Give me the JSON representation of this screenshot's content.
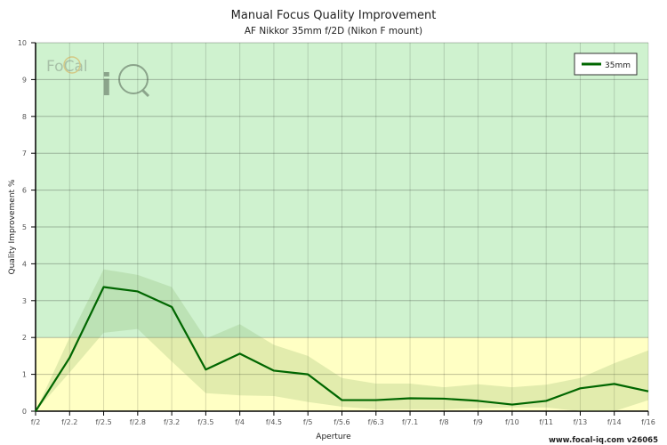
{
  "chart_data": {
    "type": "line",
    "title": "Manual Focus Quality Improvement",
    "subtitle": "AF Nikkor 35mm f/2D (Nikon F mount)",
    "xlabel": "Aperture",
    "ylabel": "Quality Improvement %",
    "ylim": [
      0,
      10
    ],
    "yticks": [
      0,
      1,
      2,
      3,
      4,
      5,
      6,
      7,
      8,
      9,
      10
    ],
    "grid": true,
    "legend_placement": "top-right",
    "categories": [
      "f/2",
      "f/2.2",
      "f/2.5",
      "f/2.8",
      "f/3.2",
      "f/3.5",
      "f/4",
      "f/4.5",
      "f/5",
      "f/5.6",
      "f/6.3",
      "f/7.1",
      "f/8",
      "f/9",
      "f/10",
      "f/11",
      "f/13",
      "f/14",
      "f/16"
    ],
    "series": [
      {
        "name": "35mm",
        "color": "#006600",
        "values": [
          0,
          1.45,
          3.37,
          3.25,
          2.83,
          1.13,
          1.56,
          1.1,
          1.0,
          0.3,
          0.3,
          0.35,
          0.34,
          0.28,
          0.18,
          0.28,
          0.62,
          0.74,
          0.54
        ],
        "band_upper": [
          0,
          2.0,
          3.85,
          3.7,
          3.37,
          1.97,
          2.36,
          1.8,
          1.5,
          0.9,
          0.75,
          0.75,
          0.65,
          0.73,
          0.65,
          0.72,
          0.9,
          1.3,
          1.65
        ],
        "band_lower": [
          0,
          1.05,
          2.13,
          2.23,
          1.35,
          0.49,
          0.43,
          0.41,
          0.25,
          0.12,
          0.05,
          0.05,
          0.05,
          0.08,
          0.1,
          0.1,
          0,
          0,
          0.3
        ]
      }
    ],
    "zones": [
      {
        "from": 0,
        "to": 2,
        "color": "#ffffc4"
      },
      {
        "from": 2,
        "to": 10,
        "color": "#cff2cf"
      }
    ]
  },
  "logo": "FoCal iQ",
  "footer": "www.focal-iq.com  v26065"
}
